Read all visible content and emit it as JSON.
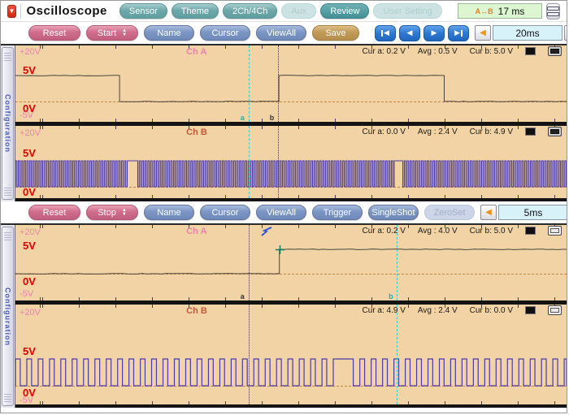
{
  "icons": {
    "menu_down": "▼",
    "left": "◀",
    "right": "▶",
    "up": "▲",
    "down": "▼",
    "ab_span": "A↔B"
  },
  "title_bar": {
    "title": "Oscilloscope",
    "buttons": [
      {
        "label": "Sensor",
        "state": "normal"
      },
      {
        "label": "Theme",
        "state": "normal"
      },
      {
        "label": "2Ch/4Ch",
        "state": "normal"
      },
      {
        "label": "Aux",
        "state": "disabled"
      },
      {
        "label": "Review",
        "state": "active"
      },
      {
        "label": "User Setting",
        "state": "disabled"
      }
    ],
    "time_value": "17 ms"
  },
  "toolbar1": {
    "reset": "Reset",
    "start": "Start",
    "name": "Name",
    "cursor": "Cursor",
    "viewall": "ViewAll",
    "save": "Save",
    "timebase": "20ms"
  },
  "toolbar2": {
    "reset": "Reset",
    "stop": "Stop",
    "name": "Name",
    "cursor": "Cursor",
    "viewall": "ViewAll",
    "trigger": "Trigger",
    "singleshot": "SingleShot",
    "zeroset": "ZeroSet",
    "timebase": "5ms"
  },
  "scope1": {
    "config_label": "Configuration",
    "ch_a": {
      "title": "Ch A",
      "v_top": "+20V",
      "v_5": "5V",
      "v_0": "0V",
      "v_neg": "-5V",
      "cur_a": "Cur a: 0.2 V",
      "avg": "Avg : 0.5 V",
      "cur_b": "Cur b: 5.0 V",
      "cursor_a_label": "a",
      "cursor_b_label": "b",
      "waveform": {
        "type": "pulse",
        "color": "#4a443e",
        "stroke": 1,
        "segments": [
          [
            0,
            0.189,
            5
          ],
          [
            0.189,
            0.478,
            0
          ],
          [
            0.478,
            0.778,
            5
          ],
          [
            0.778,
            1,
            0
          ]
        ]
      }
    },
    "ch_b": {
      "title": "Ch B",
      "v_top": "+20V",
      "v_5": "5V",
      "v_0": "0V",
      "cur_a": "Cur a: 0.0 V",
      "avg": "Avg : 2.4 V",
      "cur_b": "Cur b: 4.9 V",
      "waveform": {
        "type": "square",
        "color": "#4b3ba6",
        "stroke": 1.1,
        "period": 0.0052,
        "duty": 0.5,
        "wide_pulses": [
          [
            0.205,
            0.222
          ],
          [
            0.688,
            0.703
          ]
        ]
      }
    }
  },
  "scope2": {
    "config_label": "Configuration",
    "ch_a": {
      "title": "Ch A",
      "v_top": "+20V",
      "v_5": "5V",
      "v_0": "0V",
      "v_neg": "-5V",
      "cur_a": "Cur a: 0.2 V",
      "avg": "Avg : 4.0 V",
      "cur_b": "Cur b: 5.0 V",
      "cursor_a_label": "a",
      "cursor_b_label": "b",
      "waveform": {
        "type": "pulse",
        "color": "#4a443e",
        "stroke": 1,
        "segments": [
          [
            0,
            0.479,
            0
          ],
          [
            0.479,
            1,
            5
          ]
        ]
      }
    },
    "ch_b": {
      "title": "Ch B",
      "v_top": "+20V",
      "v_5": "5V",
      "v_0": "0V",
      "v_neg": "-5V",
      "cur_a": "Cur a: 4.9 V",
      "avg": "Avg : 2.4 V",
      "cur_b": "Cur b: 0.0 V",
      "waveform": {
        "type": "square",
        "color": "#4b3ba6",
        "stroke": 1.2,
        "period": 0.0206,
        "duty": 0.42,
        "wide_pulses": [
          [
            0.578,
            0.613
          ]
        ]
      }
    }
  }
}
